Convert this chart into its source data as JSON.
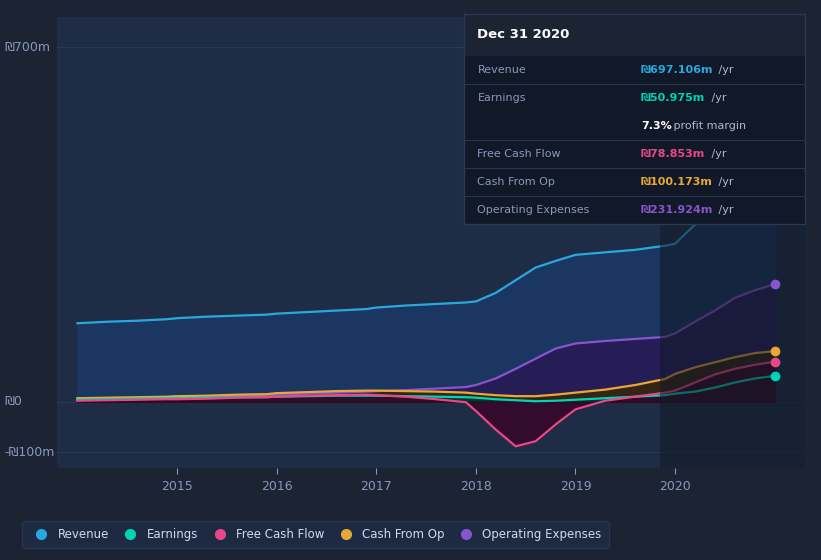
{
  "bg_color": "#1c2333",
  "plot_bg_color": "#1e2d45",
  "grid_color": "#2a3a55",
  "ylabel_700": "₪700m",
  "ylabel_0": "₪0",
  "ylabel_neg100": "-₪100m",
  "ylim": [
    -130,
    760
  ],
  "yticks": [
    -100,
    0,
    700
  ],
  "xlim": [
    2013.8,
    2021.3
  ],
  "xticks": [
    2015,
    2016,
    2017,
    2018,
    2019,
    2020
  ],
  "series": {
    "Revenue": {
      "color": "#29a8e0",
      "fill_color": "#1a3a6a",
      "x": [
        2014.0,
        2014.3,
        2014.6,
        2014.9,
        2015.0,
        2015.3,
        2015.6,
        2015.9,
        2016.0,
        2016.3,
        2016.6,
        2016.9,
        2017.0,
        2017.3,
        2017.6,
        2017.9,
        2018.0,
        2018.2,
        2018.4,
        2018.6,
        2018.8,
        2019.0,
        2019.3,
        2019.6,
        2019.9,
        2020.0,
        2020.2,
        2020.4,
        2020.6,
        2020.8,
        2021.0
      ],
      "y": [
        155,
        158,
        160,
        163,
        165,
        168,
        170,
        172,
        174,
        177,
        180,
        183,
        186,
        190,
        193,
        196,
        198,
        215,
        240,
        265,
        278,
        290,
        295,
        300,
        308,
        312,
        350,
        430,
        550,
        640,
        697
      ]
    },
    "Earnings": {
      "color": "#00d4b4",
      "fill_color": "#003a30",
      "x": [
        2014.0,
        2014.3,
        2014.6,
        2014.9,
        2015.0,
        2015.3,
        2015.6,
        2015.9,
        2016.0,
        2016.3,
        2016.6,
        2016.9,
        2017.0,
        2017.3,
        2017.6,
        2017.9,
        2018.0,
        2018.2,
        2018.4,
        2018.6,
        2018.8,
        2019.0,
        2019.3,
        2019.6,
        2019.9,
        2020.0,
        2020.2,
        2020.4,
        2020.6,
        2020.8,
        2021.0
      ],
      "y": [
        4,
        5,
        6,
        7,
        7,
        8,
        9,
        9,
        10,
        11,
        12,
        12,
        12,
        11,
        10,
        9,
        8,
        5,
        3,
        1,
        2,
        4,
        7,
        10,
        13,
        16,
        20,
        28,
        38,
        46,
        51
      ]
    },
    "Free Cash Flow": {
      "color": "#e8488a",
      "fill_color": "#3a0025",
      "x": [
        2014.0,
        2014.3,
        2014.6,
        2014.9,
        2015.0,
        2015.3,
        2015.6,
        2015.9,
        2016.0,
        2016.3,
        2016.6,
        2016.9,
        2017.0,
        2017.3,
        2017.6,
        2017.9,
        2018.0,
        2018.2,
        2018.4,
        2018.6,
        2018.8,
        2019.0,
        2019.3,
        2019.6,
        2019.9,
        2020.0,
        2020.2,
        2020.4,
        2020.6,
        2020.8,
        2021.0
      ],
      "y": [
        2,
        3,
        4,
        5,
        5,
        6,
        8,
        9,
        10,
        12,
        13,
        14,
        13,
        10,
        5,
        -1,
        -18,
        -55,
        -88,
        -78,
        -45,
        -15,
        2,
        10,
        18,
        22,
        38,
        54,
        65,
        73,
        79
      ]
    },
    "Cash From Op": {
      "color": "#e8a838",
      "fill_color": "#3a2800",
      "x": [
        2014.0,
        2014.3,
        2014.6,
        2014.9,
        2015.0,
        2015.3,
        2015.6,
        2015.9,
        2016.0,
        2016.3,
        2016.6,
        2016.9,
        2017.0,
        2017.3,
        2017.6,
        2017.9,
        2018.0,
        2018.2,
        2018.4,
        2018.6,
        2018.8,
        2019.0,
        2019.3,
        2019.6,
        2019.9,
        2020.0,
        2020.2,
        2020.4,
        2020.6,
        2020.8,
        2021.0
      ],
      "y": [
        7,
        8,
        9,
        10,
        11,
        12,
        14,
        15,
        17,
        19,
        21,
        22,
        22,
        21,
        20,
        18,
        16,
        13,
        11,
        11,
        14,
        18,
        24,
        33,
        45,
        55,
        68,
        78,
        88,
        96,
        100
      ]
    },
    "Operating Expenses": {
      "color": "#8855cc",
      "fill_color": "#2a1555",
      "x": [
        2014.0,
        2014.3,
        2014.6,
        2014.9,
        2015.0,
        2015.3,
        2015.6,
        2015.9,
        2016.0,
        2016.3,
        2016.6,
        2016.9,
        2017.0,
        2017.3,
        2017.6,
        2017.9,
        2018.0,
        2018.2,
        2018.4,
        2018.6,
        2018.8,
        2019.0,
        2019.3,
        2019.6,
        2019.9,
        2020.0,
        2020.2,
        2020.4,
        2020.6,
        2020.8,
        2021.0
      ],
      "y": [
        4,
        5,
        6,
        7,
        8,
        9,
        11,
        12,
        14,
        16,
        18,
        20,
        21,
        23,
        26,
        29,
        33,
        46,
        65,
        85,
        105,
        115,
        120,
        124,
        128,
        135,
        158,
        180,
        205,
        220,
        232
      ]
    }
  },
  "legend": [
    {
      "label": "Revenue",
      "color": "#29a8e0"
    },
    {
      "label": "Earnings",
      "color": "#00d4b4"
    },
    {
      "label": "Free Cash Flow",
      "color": "#e8488a"
    },
    {
      "label": "Cash From Op",
      "color": "#e8a838"
    },
    {
      "label": "Operating Expenses",
      "color": "#8855cc"
    }
  ],
  "infobox": {
    "title": "Dec 31 2020",
    "title_color": "#ffffff",
    "bg_color": "#111827",
    "title_bg": "#1c2333",
    "border_color": "#2a3a55",
    "sep_color": "#2a3a55",
    "label_color": "#8899bb",
    "rows": [
      {
        "label": "Revenue",
        "value": "₪697.106m",
        "unit": " /yr",
        "vcolor": "#29a8e0",
        "sub": null
      },
      {
        "label": "Earnings",
        "value": "₪50.975m",
        "unit": " /yr",
        "vcolor": "#00d4b4",
        "sub": {
          "bold": "7.3%",
          "rest": " profit margin"
        }
      },
      {
        "label": "Free Cash Flow",
        "value": "₪78.853m",
        "unit": " /yr",
        "vcolor": "#e8488a",
        "sub": null
      },
      {
        "label": "Cash From Op",
        "value": "₪100.173m",
        "unit": " /yr",
        "vcolor": "#e8a838",
        "sub": null
      },
      {
        "label": "Operating Expenses",
        "value": "₪231.924m",
        "unit": " /yr",
        "vcolor": "#8855cc",
        "sub": null
      }
    ]
  }
}
